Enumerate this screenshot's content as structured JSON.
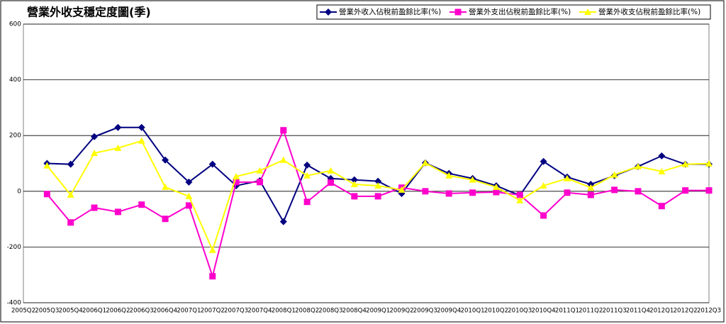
{
  "chart_data": {
    "type": "line",
    "title": "營業外收支穩定度圖(季)",
    "categories": [
      "2005Q2",
      "2005Q3",
      "2005Q4",
      "2006Q1",
      "2006Q2",
      "2006Q3",
      "2006Q4",
      "2007Q1",
      "2007Q2",
      "2007Q3",
      "2007Q4",
      "2008Q1",
      "2008Q2",
      "2008Q3",
      "2008Q4",
      "2009Q1",
      "2009Q2",
      "2009Q3",
      "2009Q4",
      "2010Q1",
      "2010Q2",
      "2010Q3",
      "2010Q4",
      "2011Q1",
      "2011Q2",
      "2011Q3",
      "2011Q4",
      "2012Q1",
      "2012Q2",
      "2012Q3"
    ],
    "series": [
      {
        "name": "營業外收入佔稅前盈餘比率(%)",
        "color": "#000080",
        "marker": "diamond",
        "values": [
          null,
          100,
          97,
          196,
          229,
          229,
          112,
          33,
          97,
          20,
          38,
          -109,
          94,
          46,
          41,
          36,
          -8,
          102,
          64,
          46,
          20,
          -15,
          107,
          51,
          25,
          56,
          89,
          127,
          97,
          97
        ]
      },
      {
        "name": "營業外支出佔稅前盈餘比率(%)",
        "color": "#ff00cc",
        "marker": "square",
        "values": [
          null,
          -10,
          -112,
          -59,
          -74,
          -48,
          -99,
          -51,
          -305,
          33,
          33,
          219,
          -38,
          31,
          -18,
          -18,
          13,
          0,
          -8,
          -5,
          -3,
          -13,
          -87,
          -5,
          -13,
          5,
          0,
          -53,
          3,
          3
        ]
      },
      {
        "name": "營業外收支佔稅前盈餘比率(%)",
        "color": "#ffff00",
        "marker": "triangle",
        "values": [
          null,
          92,
          -13,
          137,
          155,
          181,
          15,
          -18,
          -211,
          53,
          74,
          112,
          56,
          74,
          25,
          20,
          5,
          102,
          56,
          41,
          15,
          -33,
          20,
          46,
          13,
          59,
          89,
          71,
          97,
          99
        ]
      }
    ],
    "ylim": [
      -400,
      600
    ],
    "yticks": [
      -400,
      -200,
      0,
      200,
      400,
      600
    ],
    "grid": true,
    "legend": "top-right"
  }
}
